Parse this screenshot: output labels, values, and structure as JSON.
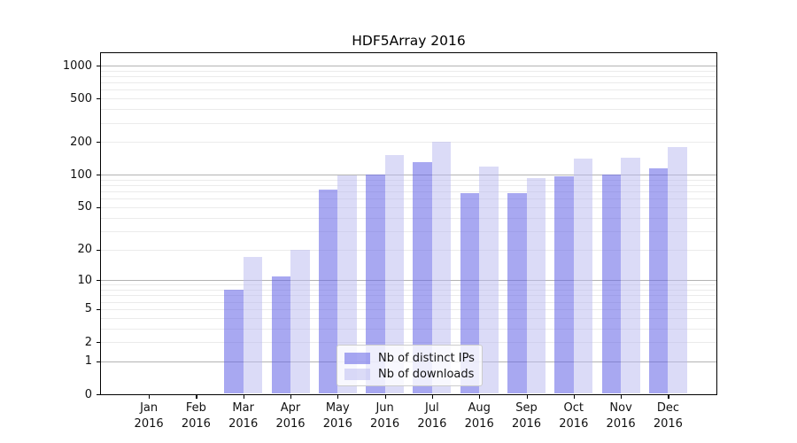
{
  "figure": {
    "title": "HDF5Array 2016"
  },
  "legend": {
    "entries": [
      {
        "label": "Nb of distinct IPs",
        "color": "#a8a8f0",
        "fill_rgba": "rgba(100,100,230,0.56)"
      },
      {
        "label": "Nb of downloads",
        "color": "#dbdbf8",
        "fill_rgba": "rgba(185,185,240,0.51)"
      }
    ]
  },
  "colors": {
    "major_grid": "#b3b3b3",
    "minor_grid": "#ebebeb",
    "spine": "#000000",
    "text": "#111111",
    "legend_border": "#cccccc"
  },
  "chart_data": {
    "type": "bar",
    "title": "HDF5Array 2016",
    "categories": [
      "Jan 2016",
      "Feb 2016",
      "Mar 2016",
      "Apr 2016",
      "May 2016",
      "Jun 2016",
      "Jul 2016",
      "Aug 2016",
      "Sep 2016",
      "Oct 2016",
      "Nov 2016",
      "Dec 2016"
    ],
    "x_tick_labels": [
      {
        "month": "Jan",
        "year": "2016"
      },
      {
        "month": "Feb",
        "year": "2016"
      },
      {
        "month": "Mar",
        "year": "2016"
      },
      {
        "month": "Apr",
        "year": "2016"
      },
      {
        "month": "May",
        "year": "2016"
      },
      {
        "month": "Jun",
        "year": "2016"
      },
      {
        "month": "Jul",
        "year": "2016"
      },
      {
        "month": "Aug",
        "year": "2016"
      },
      {
        "month": "Sep",
        "year": "2016"
      },
      {
        "month": "Oct",
        "year": "2016"
      },
      {
        "month": "Nov",
        "year": "2016"
      },
      {
        "month": "Dec",
        "year": "2016"
      }
    ],
    "series": [
      {
        "name": "Nb of distinct IPs",
        "values": [
          0,
          0,
          8,
          11,
          73,
          100,
          130,
          68,
          67,
          97,
          101,
          114
        ]
      },
      {
        "name": "Nb of downloads",
        "values": [
          0,
          0,
          17,
          20,
          98,
          152,
          202,
          118,
          93,
          140,
          144,
          181
        ]
      }
    ],
    "y_scale": "log1p",
    "y_tick_values": [
      0,
      1,
      2,
      5,
      10,
      20,
      50,
      100,
      200,
      500,
      1000
    ],
    "y_tick_labels": [
      "0",
      "1",
      "2",
      "5",
      "10",
      "20",
      "50",
      "100",
      "200",
      "500",
      "1000"
    ],
    "major_gridlines": [
      1,
      10,
      100,
      1000
    ],
    "minor_gridlines_per_decade": [
      2,
      3,
      4,
      5,
      6,
      7,
      8,
      9
    ],
    "ylim": [
      0,
      1320
    ],
    "grid": true,
    "legend_position": "lower-center"
  }
}
